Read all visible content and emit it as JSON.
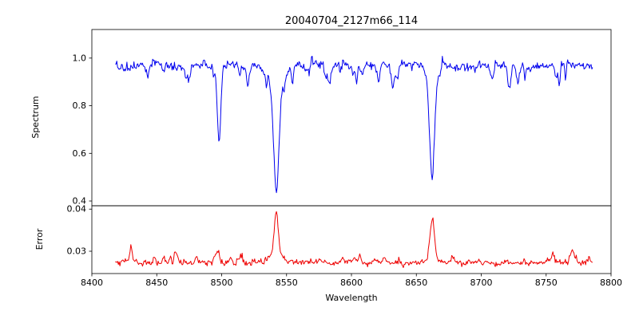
{
  "chart_data": {
    "type": "line",
    "title": "20040704_2127m66_114",
    "xlabel": "Wavelength",
    "xlim": [
      8400,
      8800
    ],
    "seed": 20040704,
    "legend": "none",
    "grid": false,
    "xticks": [
      {
        "v": 8400,
        "label": "8400"
      },
      {
        "v": 8450,
        "label": "8450"
      },
      {
        "v": 8500,
        "label": "8500"
      },
      {
        "v": 8550,
        "label": "8550"
      },
      {
        "v": 8600,
        "label": "8600"
      },
      {
        "v": 8650,
        "label": "8650"
      },
      {
        "v": 8700,
        "label": "8700"
      },
      {
        "v": 8750,
        "label": "8750"
      },
      {
        "v": 8800,
        "label": "8800"
      }
    ],
    "panels": [
      {
        "ylabel": "Spectrum",
        "ylim": [
          0.38,
          1.12
        ],
        "yticks": [
          {
            "v": 0.4,
            "label": "0.4"
          },
          {
            "v": 0.6,
            "label": "0.6"
          },
          {
            "v": 0.8,
            "label": "0.8"
          },
          {
            "v": 1.0,
            "label": "1.0"
          }
        ],
        "series": {
          "name": "spectrum",
          "color": "#0000ee",
          "x_start": 8418,
          "x_end": 8786,
          "step": 0.6,
          "baseline": 0.97,
          "noise_sd": 0.008,
          "coarse_sd": 0.008,
          "y_min": 0.405,
          "features": [
            {
              "center": 8498.0,
              "amp": -0.33,
              "width": 1.3
            },
            {
              "center": 8514.0,
              "amp": -0.06,
              "width": 1.0
            },
            {
              "center": 8542.1,
              "amp": -0.45,
              "width": 2.0
            },
            {
              "center": 8542.1,
              "amp": -0.09,
              "width": 6.0
            },
            {
              "center": 8583.0,
              "amp": -0.06,
              "width": 1.0
            },
            {
              "center": 8662.1,
              "amp": -0.43,
              "width": 1.8
            },
            {
              "center": 8662.1,
              "amp": -0.05,
              "width": 5.0
            }
          ],
          "random_features": [
            {
              "count": 28,
              "amp_min": -0.08,
              "amp_max": -0.03,
              "width_min": 0.4,
              "width_max": 1.4
            },
            {
              "count": 6,
              "amp_min": 0.02,
              "amp_max": 0.045,
              "width_min": 0.4,
              "width_max": 0.9
            }
          ]
        }
      },
      {
        "ylabel": "Error",
        "ylim": [
          0.0247,
          0.0408
        ],
        "yticks": [
          {
            "v": 0.03,
            "label": "0.03"
          },
          {
            "v": 0.04,
            "label": "0.04"
          }
        ],
        "series": {
          "name": "error",
          "color": "#ee0000",
          "x_start": 8418,
          "x_end": 8786,
          "step": 0.6,
          "baseline": 0.0273,
          "noise_sd": 0.0003,
          "coarse_sd": 0.00025,
          "y_min": 0.0258,
          "features": [
            {
              "center": 8430.0,
              "amp": 0.0033,
              "width": 1.0
            },
            {
              "center": 8448.0,
              "amp": 0.001,
              "width": 1.0
            },
            {
              "center": 8465.0,
              "amp": 0.0018,
              "width": 1.2
            },
            {
              "center": 8481.0,
              "amp": 0.0008,
              "width": 1.0
            },
            {
              "center": 8497.0,
              "amp": 0.003,
              "width": 1.2
            },
            {
              "center": 8516.0,
              "amp": 0.0012,
              "width": 1.0
            },
            {
              "center": 8542.1,
              "amp": 0.0105,
              "width": 1.6
            },
            {
              "center": 8542.1,
              "amp": 0.0018,
              "width": 5.0
            },
            {
              "center": 8593.0,
              "amp": 0.001,
              "width": 1.0
            },
            {
              "center": 8625.0,
              "amp": 0.0007,
              "width": 1.0
            },
            {
              "center": 8662.1,
              "amp": 0.0085,
              "width": 1.8
            },
            {
              "center": 8662.1,
              "amp": 0.0012,
              "width": 4.0
            },
            {
              "center": 8680.0,
              "amp": 0.0008,
              "width": 1.0
            },
            {
              "center": 8755.0,
              "amp": 0.0026,
              "width": 1.0
            },
            {
              "center": 8770.0,
              "amp": 0.003,
              "width": 1.2
            },
            {
              "center": 8783.0,
              "amp": 0.0012,
              "width": 1.0
            }
          ],
          "random_features": [
            {
              "count": 30,
              "amp_min": 0.0003,
              "amp_max": 0.0011,
              "width_min": 0.4,
              "width_max": 1.2
            }
          ]
        }
      }
    ]
  }
}
